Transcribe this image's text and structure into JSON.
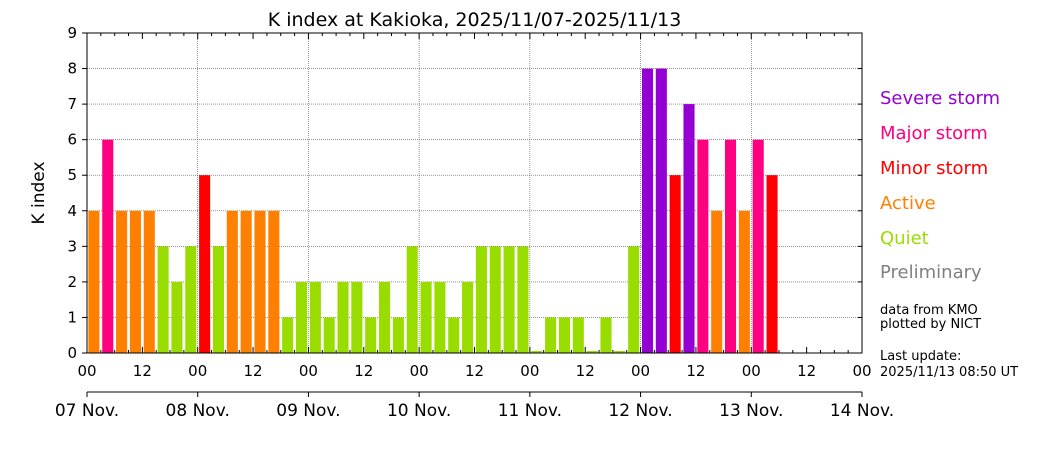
{
  "chart_data": {
    "type": "bar",
    "title": "K index at Kakioka, 2025/11/07-2025/11/13",
    "ylabel": "K index",
    "ylim": [
      0,
      9
    ],
    "yticks": [
      0,
      1,
      2,
      3,
      4,
      5,
      6,
      7,
      8,
      9
    ],
    "hour_tick_labels": [
      "00",
      "12",
      "00",
      "12",
      "00",
      "12",
      "00",
      "12",
      "00",
      "12",
      "00",
      "12",
      "00",
      "12",
      "00"
    ],
    "day_labels": [
      "07 Nov.",
      "08 Nov.",
      "09 Nov.",
      "10 Nov.",
      "11 Nov.",
      "12 Nov.",
      "13 Nov.",
      "14 Nov."
    ],
    "interval_hours": 3,
    "start": "2025-11-07 00:00",
    "values": [
      4,
      6,
      4,
      4,
      4,
      3,
      2,
      3,
      5,
      3,
      4,
      4,
      4,
      4,
      1,
      2,
      2,
      1,
      2,
      2,
      1,
      2,
      1,
      3,
      2,
      2,
      1,
      2,
      3,
      3,
      3,
      3,
      0,
      1,
      1,
      1,
      0,
      1,
      0,
      3,
      8,
      8,
      5,
      7,
      6,
      4,
      6,
      4,
      6,
      5
    ],
    "levels": [
      {
        "name": "Severe storm",
        "min": 7,
        "color": "#9400D3"
      },
      {
        "name": "Major storm",
        "min": 6,
        "color": "#FF0080"
      },
      {
        "name": "Minor storm",
        "min": 5,
        "color": "#FF0000"
      },
      {
        "name": "Active",
        "min": 4,
        "color": "#FF8000"
      },
      {
        "name": "Quiet",
        "min": 0,
        "color": "#99DD00"
      },
      {
        "name": "Preliminary",
        "min": null,
        "color": "#808080"
      }
    ],
    "grid": true
  },
  "notes": {
    "source_line1": "data from KMO",
    "source_line2": "plotted by NICT",
    "update_label": "Last update:",
    "update_time": "2025/11/13 08:50 UT"
  }
}
